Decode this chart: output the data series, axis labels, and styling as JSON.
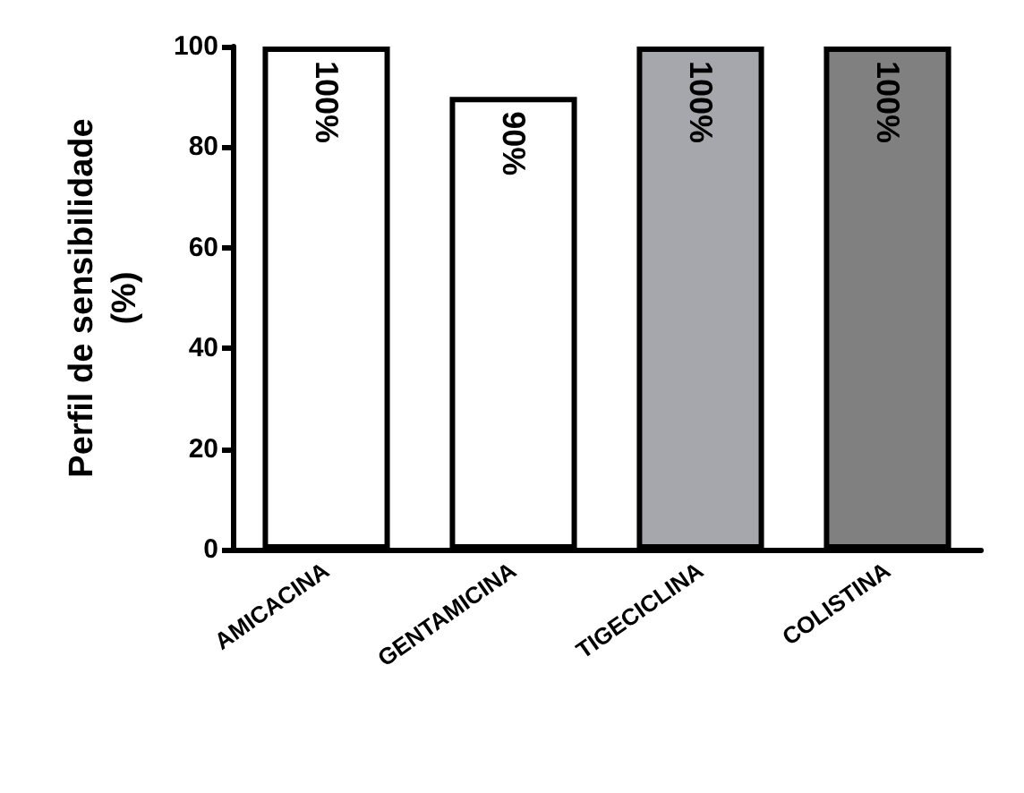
{
  "chart_data": {
    "type": "bar",
    "ylabel": "Perfil de sensibilidade\n(%)",
    "categories": [
      "AMICACINA",
      "GENTAMICINA",
      "TIGECICLINA",
      "COLISTINA"
    ],
    "values": [
      100,
      90,
      100,
      100
    ],
    "colors": [
      "#ffffff",
      "#ffffff",
      "#a6a6ad",
      "#808080"
    ],
    "value_labels": [
      "100%",
      "90%",
      "100%",
      "100%"
    ],
    "ylim": [
      0,
      100
    ],
    "yticks": [
      0,
      20,
      40,
      60,
      80,
      100
    ],
    "grid": false
  }
}
